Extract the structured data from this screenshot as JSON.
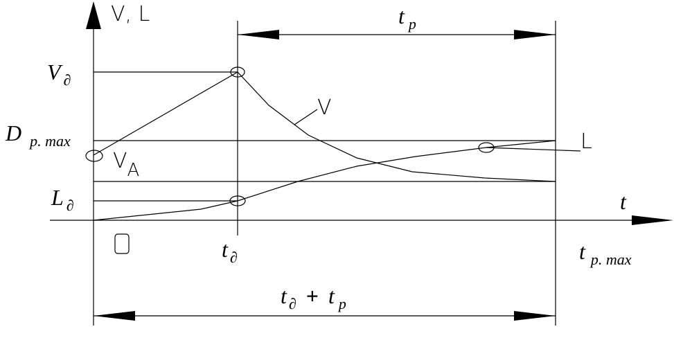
{
  "axis_label": "V, L",
  "labels": {
    "t_p": {
      "main": "t",
      "sub": "p"
    },
    "v_d": {
      "main": "V",
      "sub": "∂"
    },
    "d_pmax": {
      "main": "D",
      "sub": "p. max"
    },
    "l_d": {
      "main": "L",
      "sub": "∂"
    },
    "t_axis": "t",
    "origin": "0",
    "t_d": {
      "main": "t",
      "sub": "∂"
    },
    "t_pmax": {
      "main": "t",
      "sub": "p. max"
    },
    "t_sum": {
      "main1": "t",
      "sub1": "∂",
      "op": "+",
      "main2": "t",
      "sub2": "p"
    },
    "curve_v": "V",
    "v_a": {
      "main": "V",
      "sub": "A"
    },
    "curve_l": "L"
  }
}
